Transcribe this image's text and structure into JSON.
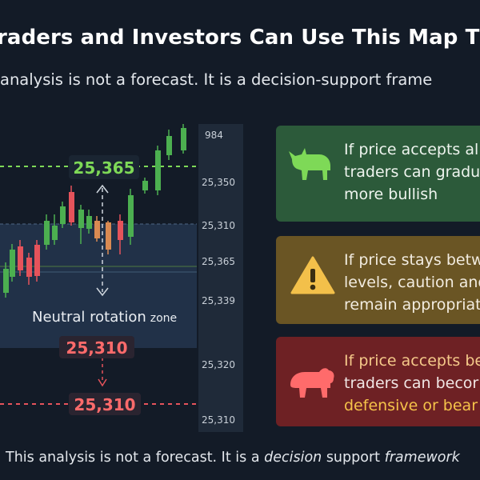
{
  "header": {
    "title": "raders and Investors Can Use This Map T",
    "subtitle": "analysis is not a forecast. It is a decision-support frame"
  },
  "footer": {
    "part1": "This analysis is not a forecast. It is a ",
    "part2": "decision",
    "part3": " support ",
    "part4": "framework"
  },
  "chart": {
    "price_labels": [
      "984",
      "25,350",
      "25,310",
      "25,365",
      "25,339",
      "25,320",
      "25,310"
    ],
    "callouts": {
      "upper": "25,365",
      "mid": "25,310",
      "lower": "25,310"
    },
    "zone_label": "Neutral rotation",
    "zone_label_suffix": "zone",
    "colors": {
      "up": "#4caf50",
      "down": "#e5535b",
      "neutral_candle": "#d98a52",
      "upper_line": "#7ed957",
      "lower_line": "#e5535b",
      "zone": "#22334a"
    }
  },
  "cards": [
    {
      "name": "bull",
      "icon": "bull-icon",
      "lines": [
        "If price accepts al",
        "traders can gradu",
        "more bullish"
      ],
      "color": "#2c5a3a"
    },
    {
      "name": "caution",
      "icon": "warning-icon",
      "lines": [
        "If price stays betw",
        "levels, caution and",
        "remain appropriat"
      ],
      "color": "#6a5524"
    },
    {
      "name": "bear",
      "icon": "bear-icon",
      "lines": [
        "If price accepts be",
        "traders can becor",
        "defensive or bear"
      ],
      "color": "#6e2124"
    }
  ]
}
